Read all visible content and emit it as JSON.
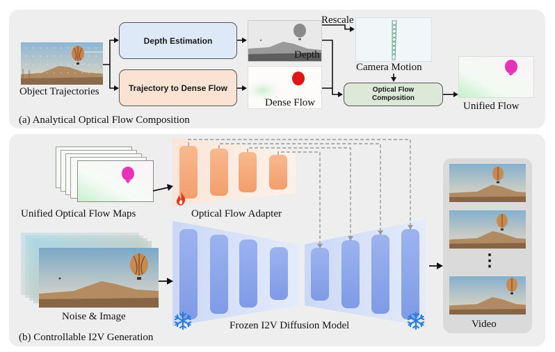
{
  "panel_a": {
    "caption": "(a) Analytical Optical Flow Composition",
    "object_trajectories_label": "Object Trajectories",
    "depth_estimation_label": "Depth Estimation",
    "trajectory_to_flow_label": "Trajectory to Dense Flow",
    "depth_label": "Depth",
    "dense_flow_label": "Dense Flow",
    "rescale_label": "Rescale",
    "camera_motion_label": "Camera Motion",
    "composition_label_line1": "Optical Flow",
    "composition_label_line2": "Composition",
    "unified_flow_label": "Unified Flow"
  },
  "panel_b": {
    "caption": "(b) Controllable I2V Generation",
    "flow_maps_label": "Unified Optical Flow Maps",
    "adapter_label": "Optical Flow Adapter",
    "noise_image_label": "Noise & Image",
    "diffusion_label": "Frozen I2V Diffusion Model",
    "video_label": "Video",
    "ellipsis": "⋮"
  },
  "icons": {
    "trainable": "fire-icon",
    "frozen": "snowflake-icon"
  },
  "colors": {
    "panel_bg": "#eeeeee",
    "depth_box": "#dde9f6",
    "trajectory_box": "#fae3d2",
    "composition_box": "#dde8d8",
    "adapter_block": "#f4a77a",
    "diffusion_block": "#8aa4ec",
    "balloon_pink": "#e832b8",
    "balloon_red": "#e01515"
  }
}
